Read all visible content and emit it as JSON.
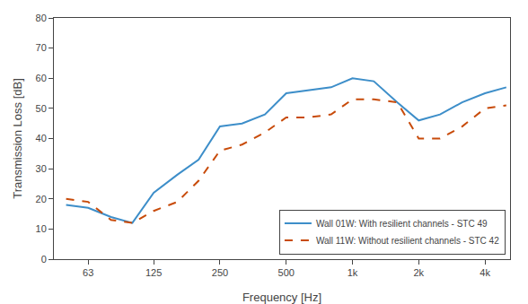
{
  "chart_data": {
    "type": "line",
    "x": [
      50,
      63,
      80,
      100,
      125,
      160,
      200,
      250,
      315,
      400,
      500,
      630,
      800,
      1000,
      1250,
      1600,
      2000,
      2500,
      3150,
      4000,
      5000
    ],
    "series": [
      {
        "name": "Wall 01W: With resilient channels - STC 49",
        "color": "#3d8ec9",
        "line_style": "solid",
        "values": [
          18,
          17,
          14,
          12,
          22,
          28,
          33,
          44,
          45,
          48,
          55,
          56,
          57,
          60,
          59,
          52,
          46,
          48,
          52,
          55,
          57
        ]
      },
      {
        "name": "Wall 11W: Without resilient channels - STC 42",
        "color": "#c84b0a",
        "line_style": "dash",
        "values": [
          20,
          19,
          13,
          12,
          16,
          19,
          26,
          36,
          38,
          42,
          47,
          47,
          48,
          53,
          53,
          52,
          40,
          40,
          44,
          50,
          51
        ]
      }
    ],
    "x_label": "Frequency [Hz]",
    "y_label": "Transmission Loss [dB]",
    "log": "x",
    "xlim": [
      44,
      5200
    ],
    "xticks": [
      63,
      125,
      250,
      500,
      {
        "value": 1000,
        "label": "1k"
      },
      {
        "value": 2000,
        "label": "2k"
      },
      {
        "value": 4000,
        "label": "4k"
      }
    ],
    "ylim": [
      0,
      80
    ],
    "yticks": [
      0,
      10,
      20,
      30,
      40,
      50,
      60,
      70,
      80
    ],
    "grid": false,
    "legend": "lower right"
  }
}
